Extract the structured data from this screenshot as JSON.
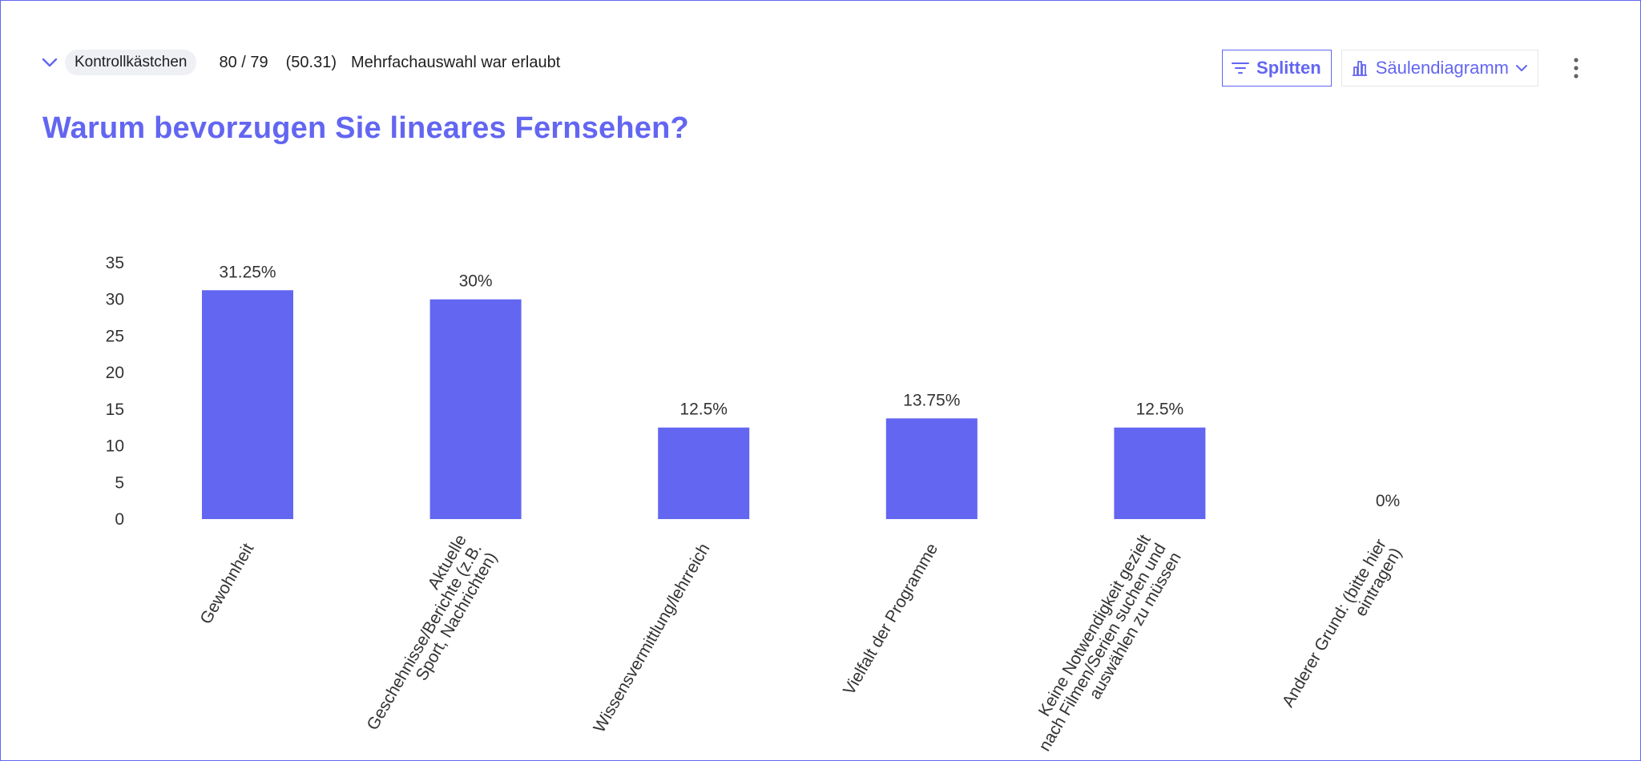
{
  "header": {
    "question_type": "Kontrollkästchen",
    "responses": "80 / 79",
    "score": "(50.31)",
    "multi_note": "Mehrfachauswahl war erlaubt",
    "title": "Warum bevorzugen Sie lineares Fernsehen?"
  },
  "toolbar": {
    "split_label": "Splitten",
    "chart_type_label": "Säulendiagramm"
  },
  "icons": {
    "collapse": "chevron-down-icon",
    "split": "filter-icon",
    "chart_type": "bar-chart-icon",
    "dropdown": "chevron-down-icon",
    "more": "kebab-menu-icon"
  },
  "colors": {
    "accent": "#6366f1",
    "bar": "#6366f1",
    "frame_border": "#6366f1",
    "chip_bg": "#eef0f4"
  },
  "chart_data": {
    "type": "bar",
    "title": "Warum bevorzugen Sie lineares Fernsehen?",
    "xlabel": "",
    "ylabel": "",
    "ylim": [
      0,
      35
    ],
    "yticks": [
      0,
      5,
      10,
      15,
      20,
      25,
      30,
      35
    ],
    "grid": false,
    "categories": [
      [
        "Gewohnheit"
      ],
      [
        "Aktuelle",
        "Geschehnisse/Berichte (z.B.",
        "Sport, Nachrichten)"
      ],
      [
        "Wissensvermittlung/lehrreich"
      ],
      [
        "Vielfalt der Programme"
      ],
      [
        "Keine Notwendigkeit gezielt",
        "nach Filmen/Serien suchen und",
        "auswählen zu müssen"
      ],
      [
        "Anderer Grund: (bitte hier",
        "eintragen)"
      ]
    ],
    "values": [
      31.25,
      30,
      12.5,
      13.75,
      12.5,
      0
    ],
    "data_labels": [
      "31.25%",
      "30%",
      "12.5%",
      "13.75%",
      "12.5%",
      "0%"
    ]
  }
}
